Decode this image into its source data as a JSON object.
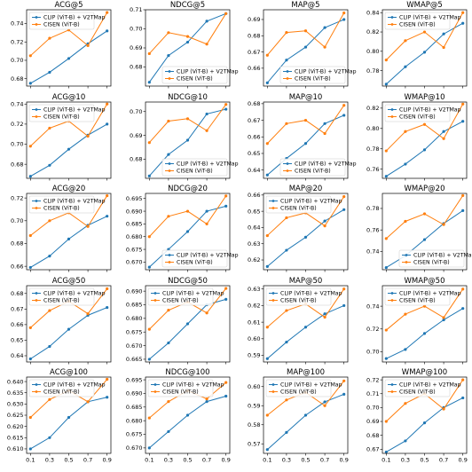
{
  "colors": {
    "clip": "#1f77b4",
    "cisen": "#ff7f0e"
  },
  "chart_data": [
    {
      "type": "line",
      "title": "ACG@5",
      "x": [
        0.1,
        0.3,
        0.5,
        0.7,
        0.9
      ],
      "xticks": [
        "0.1",
        "0.3",
        "0.5",
        "0.7",
        "0.9"
      ],
      "ylim": [
        0.672,
        0.755
      ],
      "yticks": [
        0.68,
        0.7,
        0.72,
        0.74
      ],
      "yticklabels": [
        "0.68",
        "0.70",
        "0.72",
        "0.74"
      ],
      "legend": "upper-left",
      "series": [
        {
          "name": "CLIP (ViT-B) + V2TMap",
          "values": [
            0.675,
            0.687,
            0.702,
            0.718,
            0.732
          ]
        },
        {
          "name": "CISEN (ViT-B)",
          "values": [
            0.705,
            0.724,
            0.733,
            0.716,
            0.752
          ]
        }
      ]
    },
    {
      "type": "line",
      "title": "NDCG@5",
      "x": [
        0.1,
        0.3,
        0.5,
        0.7,
        0.9
      ],
      "xticks": [
        "",
        "",
        "",
        "",
        ""
      ],
      "ylim": [
        0.67,
        0.71
      ],
      "yticks": [
        0.68,
        0.69,
        0.7,
        0.71
      ],
      "yticklabels": [
        "0.68",
        "0.69",
        "0.70",
        "0.71"
      ],
      "legend": "lower-right",
      "series": [
        {
          "name": "CLIP (ViT-B) + V2TMap",
          "values": [
            0.672,
            0.686,
            0.693,
            0.704,
            0.708
          ]
        },
        {
          "name": "CISEN (ViT-B)",
          "values": [
            0.687,
            0.698,
            0.696,
            0.692,
            0.708
          ]
        }
      ]
    },
    {
      "type": "line",
      "title": "MAP@5",
      "x": [
        0.1,
        0.3,
        0.5,
        0.7,
        0.9
      ],
      "xticks": [
        "",
        "",
        "",
        "",
        ""
      ],
      "ylim": [
        0.649,
        0.696
      ],
      "yticks": [
        0.66,
        0.67,
        0.68,
        0.69
      ],
      "yticklabels": [
        "0.66",
        "0.67",
        "0.68",
        "0.69"
      ],
      "legend": "lower-right",
      "series": [
        {
          "name": "CLIP (ViT-B) + V2TMap",
          "values": [
            0.651,
            0.665,
            0.673,
            0.685,
            0.69
          ]
        },
        {
          "name": "CISEN (ViT-B)",
          "values": [
            0.668,
            0.682,
            0.683,
            0.673,
            0.694
          ]
        }
      ]
    },
    {
      "type": "line",
      "title": "WMAP@5",
      "x": [
        0.1,
        0.3,
        0.5,
        0.7,
        0.9
      ],
      "xticks": [
        "",
        "",
        "",
        "",
        ""
      ],
      "ylim": [
        0.764,
        0.843
      ],
      "yticks": [
        0.78,
        0.8,
        0.82,
        0.84
      ],
      "yticklabels": [
        "0.78",
        "0.80",
        "0.82",
        "0.84"
      ],
      "legend": "upper-left",
      "series": [
        {
          "name": "CLIP (ViT-B) + V2TMap",
          "values": [
            0.766,
            0.784,
            0.799,
            0.818,
            0.829
          ]
        },
        {
          "name": "CISEN (ViT-B)",
          "values": [
            0.791,
            0.811,
            0.82,
            0.804,
            0.84
          ]
        }
      ]
    },
    {
      "type": "line",
      "title": "ACG@10",
      "x": [
        0.1,
        0.3,
        0.5,
        0.7,
        0.9
      ],
      "xticks": [
        "",
        "",
        "",
        "",
        ""
      ],
      "ylim": [
        0.666,
        0.742
      ],
      "yticks": [
        0.68,
        0.7,
        0.72,
        0.74
      ],
      "yticklabels": [
        "0.68",
        "0.70",
        "0.72",
        "0.74"
      ],
      "legend": "upper-left",
      "series": [
        {
          "name": "CLIP (ViT-B) + V2TMap",
          "values": [
            0.668,
            0.679,
            0.695,
            0.709,
            0.72
          ]
        },
        {
          "name": "CISEN (ViT-B)",
          "values": [
            0.698,
            0.716,
            0.723,
            0.708,
            0.74
          ]
        }
      ]
    },
    {
      "type": "line",
      "title": "NDCG@10",
      "x": [
        0.1,
        0.3,
        0.5,
        0.7,
        0.9
      ],
      "xticks": [
        "",
        "",
        "",
        "",
        ""
      ],
      "ylim": [
        0.672,
        0.704
      ],
      "yticks": [
        0.68,
        0.69,
        0.7
      ],
      "yticklabels": [
        "0.68",
        "0.69",
        "0.70"
      ],
      "legend": "lower-right",
      "series": [
        {
          "name": "CLIP (ViT-B) + V2TMap",
          "values": [
            0.673,
            0.682,
            0.688,
            0.699,
            0.701
          ]
        },
        {
          "name": "CISEN (ViT-B)",
          "values": [
            0.687,
            0.696,
            0.697,
            0.692,
            0.703
          ]
        }
      ]
    },
    {
      "type": "line",
      "title": "MAP@10",
      "x": [
        0.1,
        0.3,
        0.5,
        0.7,
        0.9
      ],
      "xticks": [
        "",
        "",
        "",
        "",
        ""
      ],
      "ylim": [
        0.635,
        0.681
      ],
      "yticks": [
        0.64,
        0.65,
        0.66,
        0.67,
        0.68
      ],
      "yticklabels": [
        "0.64",
        "0.65",
        "0.66",
        "0.67",
        "0.68"
      ],
      "legend": "lower-right",
      "series": [
        {
          "name": "CLIP (ViT-B) + V2TMap",
          "values": [
            0.637,
            0.647,
            0.656,
            0.668,
            0.673
          ]
        },
        {
          "name": "CISEN (ViT-B)",
          "values": [
            0.656,
            0.668,
            0.67,
            0.662,
            0.679
          ]
        }
      ]
    },
    {
      "type": "line",
      "title": "WMAP@10",
      "x": [
        0.1,
        0.3,
        0.5,
        0.7,
        0.9
      ],
      "xticks": [
        "",
        "",
        "",
        "",
        ""
      ],
      "ylim": [
        0.751,
        0.826
      ],
      "yticks": [
        0.76,
        0.78,
        0.8,
        0.82
      ],
      "yticklabels": [
        "0.76",
        "0.78",
        "0.80",
        "0.82"
      ],
      "legend": "upper-left",
      "series": [
        {
          "name": "CLIP (ViT-B) + V2TMap",
          "values": [
            0.753,
            0.765,
            0.779,
            0.797,
            0.807
          ]
        },
        {
          "name": "CISEN (ViT-B)",
          "values": [
            0.778,
            0.797,
            0.804,
            0.79,
            0.824
          ]
        }
      ]
    },
    {
      "type": "line",
      "title": "ACG@20",
      "x": [
        0.1,
        0.3,
        0.5,
        0.7,
        0.9
      ],
      "xticks": [
        "",
        "",
        "",
        "",
        ""
      ],
      "ylim": [
        0.657,
        0.724
      ],
      "yticks": [
        0.66,
        0.68,
        0.7,
        0.72
      ],
      "yticklabels": [
        "0.66",
        "0.68",
        "0.70",
        "0.72"
      ],
      "legend": "upper-left",
      "series": [
        {
          "name": "CLIP (ViT-B) + V2TMap",
          "values": [
            0.659,
            0.669,
            0.684,
            0.696,
            0.704
          ]
        },
        {
          "name": "CISEN (ViT-B)",
          "values": [
            0.687,
            0.7,
            0.707,
            0.695,
            0.722
          ]
        }
      ]
    },
    {
      "type": "line",
      "title": "NDCG@20",
      "x": [
        0.1,
        0.3,
        0.5,
        0.7,
        0.9
      ],
      "xticks": [
        "",
        "",
        "",
        "",
        ""
      ],
      "ylim": [
        0.667,
        0.697
      ],
      "yticks": [
        0.67,
        0.675,
        0.68,
        0.685,
        0.69,
        0.695
      ],
      "yticklabels": [
        "0.670",
        "0.675",
        "0.680",
        "0.685",
        "0.690",
        "0.695"
      ],
      "legend": "lower-right",
      "series": [
        {
          "name": "CLIP (ViT-B) + V2TMap",
          "values": [
            0.668,
            0.675,
            0.682,
            0.69,
            0.692
          ]
        },
        {
          "name": "CISEN (ViT-B)",
          "values": [
            0.68,
            0.688,
            0.69,
            0.685,
            0.696
          ]
        }
      ]
    },
    {
      "type": "line",
      "title": "MAP@20",
      "x": [
        0.1,
        0.3,
        0.5,
        0.7,
        0.9
      ],
      "xticks": [
        "",
        "",
        "",
        "",
        ""
      ],
      "ylim": [
        0.614,
        0.661
      ],
      "yticks": [
        0.62,
        0.63,
        0.64,
        0.65,
        0.66
      ],
      "yticklabels": [
        "0.62",
        "0.63",
        "0.64",
        "0.65",
        "0.66"
      ],
      "legend": "upper-left",
      "series": [
        {
          "name": "CLIP (ViT-B) + V2TMap",
          "values": [
            0.616,
            0.626,
            0.634,
            0.644,
            0.651
          ]
        },
        {
          "name": "CISEN (ViT-B)",
          "values": [
            0.635,
            0.646,
            0.649,
            0.641,
            0.659
          ]
        }
      ]
    },
    {
      "type": "line",
      "title": "WMAP@20",
      "x": [
        0.1,
        0.3,
        0.5,
        0.7,
        0.9
      ],
      "xticks": [
        "",
        "",
        "",
        "",
        ""
      ],
      "ylim": [
        0.723,
        0.794
      ],
      "yticks": [
        0.74,
        0.76,
        0.78
      ],
      "yticklabels": [
        "0.74",
        "0.76",
        "0.78"
      ],
      "legend": "lower-right",
      "series": [
        {
          "name": "CLIP (ViT-B) + V2TMap",
          "values": [
            0.725,
            0.736,
            0.751,
            0.766,
            0.778
          ]
        },
        {
          "name": "CISEN (ViT-B)",
          "values": [
            0.752,
            0.768,
            0.775,
            0.765,
            0.792
          ]
        }
      ]
    },
    {
      "type": "line",
      "title": "ACG@50",
      "x": [
        0.1,
        0.3,
        0.5,
        0.7,
        0.9
      ],
      "xticks": [
        "",
        "",
        "",
        "",
        ""
      ],
      "ylim": [
        0.636,
        0.685
      ],
      "yticks": [
        0.64,
        0.65,
        0.66,
        0.67,
        0.68
      ],
      "yticklabels": [
        "0.64",
        "0.65",
        "0.66",
        "0.67",
        "0.68"
      ],
      "legend": "upper-left",
      "series": [
        {
          "name": "CLIP (ViT-B) + V2TMap",
          "values": [
            0.638,
            0.646,
            0.657,
            0.666,
            0.671
          ]
        },
        {
          "name": "CISEN (ViT-B)",
          "values": [
            0.658,
            0.669,
            0.675,
            0.667,
            0.683
          ]
        }
      ]
    },
    {
      "type": "line",
      "title": "NDCG@50",
      "x": [
        0.1,
        0.3,
        0.5,
        0.7,
        0.9
      ],
      "xticks": [
        "",
        "",
        "",
        "",
        ""
      ],
      "ylim": [
        0.664,
        0.692
      ],
      "yticks": [
        0.665,
        0.67,
        0.675,
        0.68,
        0.685,
        0.69
      ],
      "yticklabels": [
        "0.665",
        "0.670",
        "0.675",
        "0.680",
        "0.685",
        "0.690"
      ],
      "legend": "upper-left",
      "series": [
        {
          "name": "CLIP (ViT-B) + V2TMap",
          "values": [
            0.665,
            0.671,
            0.678,
            0.685,
            0.687
          ]
        },
        {
          "name": "CISEN (ViT-B)",
          "values": [
            0.676,
            0.683,
            0.686,
            0.682,
            0.691
          ]
        }
      ]
    },
    {
      "type": "line",
      "title": "MAP@50",
      "x": [
        0.1,
        0.3,
        0.5,
        0.7,
        0.9
      ],
      "xticks": [
        "",
        "",
        "",
        "",
        ""
      ],
      "ylim": [
        0.586,
        0.632
      ],
      "yticks": [
        0.59,
        0.6,
        0.61,
        0.62,
        0.63
      ],
      "yticklabels": [
        "0.59",
        "0.60",
        "0.61",
        "0.62",
        "0.63"
      ],
      "legend": "upper-left",
      "series": [
        {
          "name": "CLIP (ViT-B) + V2TMap",
          "values": [
            0.588,
            0.598,
            0.607,
            0.615,
            0.62
          ]
        },
        {
          "name": "CISEN (ViT-B)",
          "values": [
            0.607,
            0.617,
            0.621,
            0.613,
            0.63
          ]
        }
      ]
    },
    {
      "type": "line",
      "title": "WMAP@50",
      "x": [
        0.1,
        0.3,
        0.5,
        0.7,
        0.9
      ],
      "xticks": [
        "",
        "",
        "",
        "",
        ""
      ],
      "ylim": [
        0.691,
        0.758
      ],
      "yticks": [
        0.7,
        0.72,
        0.74
      ],
      "yticklabels": [
        "0.70",
        "0.72",
        "0.74"
      ],
      "legend": "upper-left",
      "series": [
        {
          "name": "CLIP (ViT-B) + V2TMap",
          "values": [
            0.694,
            0.702,
            0.716,
            0.728,
            0.738
          ]
        },
        {
          "name": "CISEN (ViT-B)",
          "values": [
            0.719,
            0.733,
            0.74,
            0.73,
            0.755
          ]
        }
      ]
    },
    {
      "type": "line",
      "title": "ACG@100",
      "x": [
        0.1,
        0.3,
        0.5,
        0.7,
        0.9
      ],
      "xticks": [
        "0.1",
        "0.3",
        "0.5",
        "0.7",
        "0.9"
      ],
      "ylim": [
        0.608,
        0.642
      ],
      "yticks": [
        0.61,
        0.615,
        0.62,
        0.625,
        0.63,
        0.635,
        0.64
      ],
      "yticklabels": [
        "0.610",
        "0.615",
        "0.620",
        "0.625",
        "0.630",
        "0.635",
        "0.640"
      ],
      "legend": "upper-left",
      "series": [
        {
          "name": "CLIP (ViT-B) + V2TMap",
          "values": [
            0.61,
            0.615,
            0.624,
            0.631,
            0.633
          ]
        },
        {
          "name": "CISEN (ViT-B)",
          "values": [
            0.624,
            0.632,
            0.636,
            0.631,
            0.641
          ]
        }
      ]
    },
    {
      "type": "line",
      "title": "NDCG@100",
      "x": [
        0.1,
        0.3,
        0.5,
        0.7,
        0.9
      ],
      "xticks": [
        "0.1",
        "0.3",
        "0.5",
        "0.7",
        "0.9"
      ],
      "ylim": [
        0.668,
        0.696
      ],
      "yticks": [
        0.67,
        0.675,
        0.68,
        0.685,
        0.69,
        0.695
      ],
      "yticklabels": [
        "0.670",
        "0.675",
        "0.680",
        "0.685",
        "0.690",
        "0.695"
      ],
      "legend": "upper-left",
      "series": [
        {
          "name": "CLIP (ViT-B) + V2TMap",
          "values": [
            0.67,
            0.676,
            0.682,
            0.687,
            0.689
          ]
        },
        {
          "name": "CISEN (ViT-B)",
          "values": [
            0.681,
            0.687,
            0.691,
            0.688,
            0.694
          ]
        }
      ]
    },
    {
      "type": "line",
      "title": "MAP@100",
      "x": [
        0.1,
        0.3,
        0.5,
        0.7,
        0.9
      ],
      "xticks": [
        "0.1",
        "0.3",
        "0.5",
        "0.7",
        "0.9"
      ],
      "ylim": [
        0.565,
        0.605
      ],
      "yticks": [
        0.57,
        0.58,
        0.59,
        0.6
      ],
      "yticklabels": [
        "0.57",
        "0.58",
        "0.59",
        "0.60"
      ],
      "legend": "upper-left",
      "series": [
        {
          "name": "CLIP (ViT-B) + V2TMap",
          "values": [
            0.567,
            0.576,
            0.585,
            0.592,
            0.596
          ]
        },
        {
          "name": "CISEN (ViT-B)",
          "values": [
            0.585,
            0.593,
            0.597,
            0.59,
            0.603
          ]
        }
      ]
    },
    {
      "type": "line",
      "title": "WMAP@100",
      "x": [
        0.1,
        0.3,
        0.5,
        0.7,
        0.9
      ],
      "xticks": [
        "0.1",
        "0.3",
        "0.5",
        "0.7",
        "0.9"
      ],
      "ylim": [
        0.667,
        0.722
      ],
      "yticks": [
        0.67,
        0.68,
        0.69,
        0.7,
        0.71,
        0.72
      ],
      "yticklabels": [
        "0.67",
        "0.68",
        "0.69",
        "0.70",
        "0.71",
        "0.72"
      ],
      "legend": "upper-left",
      "series": [
        {
          "name": "CLIP (ViT-B) + V2TMap",
          "values": [
            0.668,
            0.676,
            0.689,
            0.7,
            0.707
          ]
        },
        {
          "name": "CISEN (ViT-B)",
          "values": [
            0.69,
            0.703,
            0.71,
            0.699,
            0.72
          ]
        }
      ]
    }
  ]
}
